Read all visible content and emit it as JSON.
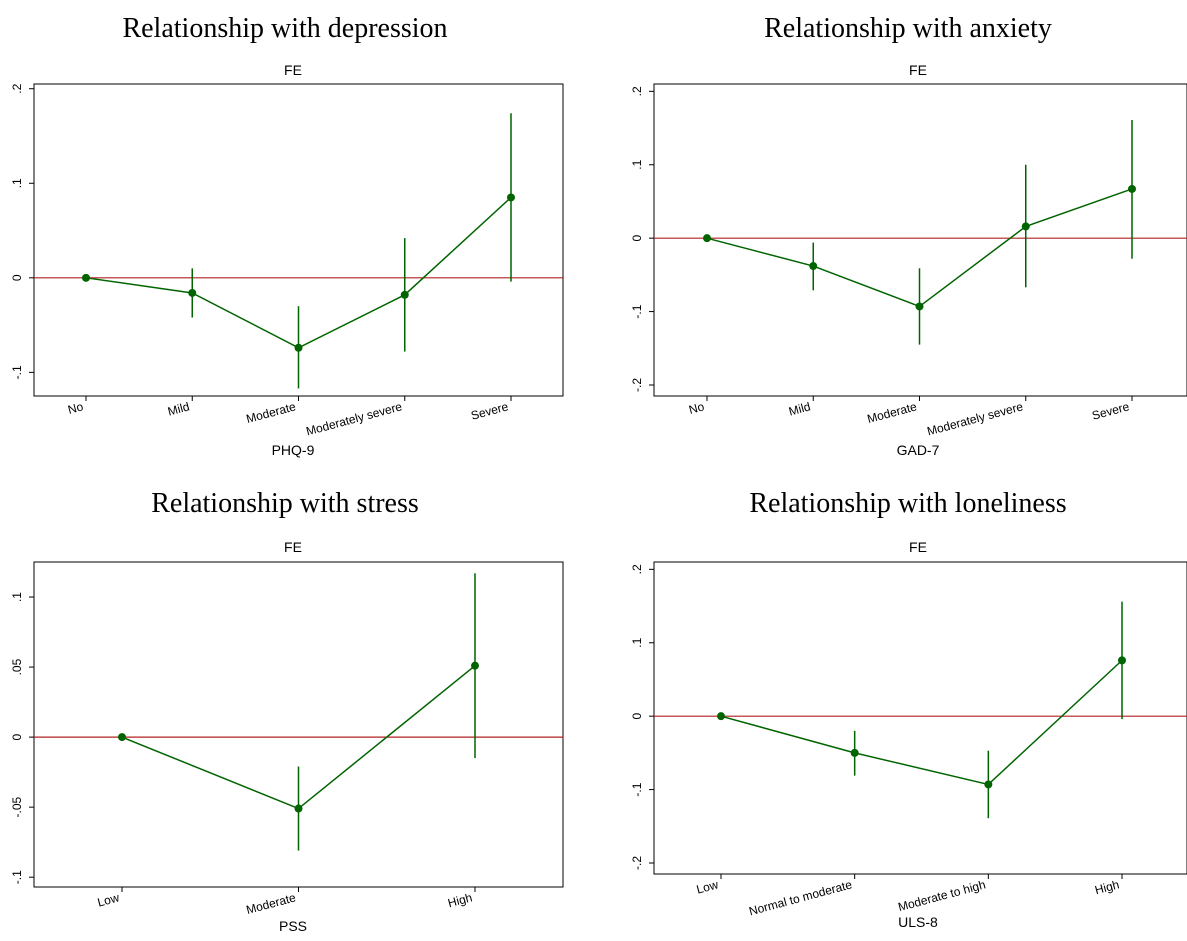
{
  "colors": {
    "series": "#006400",
    "reference_line": "#b22222",
    "frame": "#000000"
  },
  "chart_data": [
    {
      "type": "line",
      "title": "Relationship with depression",
      "subtitle": "FE",
      "xlabel": "PHQ-9",
      "ylabel": "",
      "categories": [
        "No",
        "Mild",
        "Moderate",
        "Moderately severe",
        "Severe"
      ],
      "series": [
        {
          "values": [
            0,
            -0.016,
            -0.074,
            -0.018,
            0.085
          ],
          "ci_low": [
            0,
            -0.042,
            -0.117,
            -0.078,
            -0.004
          ],
          "ci_high": [
            0,
            0.01,
            -0.03,
            0.042,
            0.174
          ]
        }
      ],
      "ylim": [
        -0.125,
        0.205
      ],
      "yticks": [
        -0.1,
        0,
        0.1,
        0.2
      ],
      "ytick_labels": [
        "-.1",
        "0",
        ".1",
        ".2"
      ],
      "reference_y": 0,
      "grid": false,
      "legend": "none"
    },
    {
      "type": "line",
      "title": "Relationship with anxiety",
      "subtitle": "FE",
      "xlabel": "GAD-7",
      "ylabel": "",
      "categories": [
        "No",
        "Mild",
        "Moderate",
        "Moderately severe",
        "Severe"
      ],
      "series": [
        {
          "values": [
            0,
            -0.038,
            -0.093,
            0.016,
            0.067
          ],
          "ci_low": [
            0,
            -0.071,
            -0.145,
            -0.067,
            -0.028
          ],
          "ci_high": [
            0,
            -0.006,
            -0.041,
            0.1,
            0.161
          ]
        }
      ],
      "ylim": [
        -0.215,
        0.21
      ],
      "yticks": [
        -0.2,
        -0.1,
        0,
        0.1,
        0.2
      ],
      "ytick_labels": [
        "-.2",
        "-.1",
        "0",
        ".1",
        ".2"
      ],
      "reference_y": 0,
      "grid": false,
      "legend": "none"
    },
    {
      "type": "line",
      "title": "Relationship with stress",
      "subtitle": "FE",
      "xlabel": "PSS",
      "ylabel": "",
      "categories": [
        "Low",
        "Moderate",
        "High"
      ],
      "series": [
        {
          "values": [
            0,
            -0.051,
            0.051
          ],
          "ci_low": [
            0,
            -0.081,
            -0.015
          ],
          "ci_high": [
            0,
            -0.021,
            0.117
          ]
        }
      ],
      "ylim": [
        -0.107,
        0.125
      ],
      "yticks": [
        -0.1,
        -0.05,
        0,
        0.05,
        0.1
      ],
      "ytick_labels": [
        "-.1",
        "-.05",
        "0",
        ".05",
        ".1"
      ],
      "reference_y": 0,
      "grid": false,
      "legend": "none"
    },
    {
      "type": "line",
      "title": "Relationship with loneliness",
      "subtitle": "FE",
      "xlabel": "ULS-8",
      "ylabel": "",
      "categories": [
        "Low",
        "Normal to moderate",
        "Moderate to high",
        "High"
      ],
      "series": [
        {
          "values": [
            0,
            -0.05,
            -0.093,
            0.076
          ],
          "ci_low": [
            0,
            -0.081,
            -0.139,
            -0.004
          ],
          "ci_high": [
            0,
            -0.02,
            -0.047,
            0.156
          ]
        }
      ],
      "ylim": [
        -0.215,
        0.21
      ],
      "yticks": [
        -0.2,
        -0.1,
        0,
        0.1,
        0.2
      ],
      "ytick_labels": [
        "-.2",
        "-.1",
        "0",
        ".1",
        ".2"
      ],
      "reference_y": 0,
      "grid": false,
      "legend": "none"
    }
  ]
}
